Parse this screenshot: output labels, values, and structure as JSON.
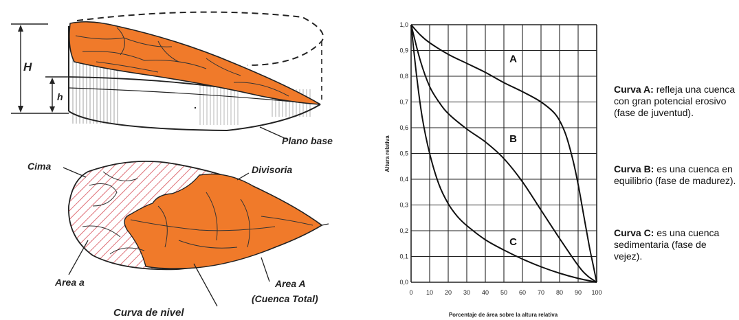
{
  "schematic": {
    "label_H": "H",
    "label_h": "h",
    "plano_base": "Plano base",
    "cima": "Cima",
    "divisoria": "Divisoria",
    "area_a": "Area  a",
    "area_A_line1": "Area  A",
    "area_A_line2": "(Cuenca Total)",
    "curva_de_nivel": "Curva de nivel",
    "colors": {
      "basin_fill": "#f07a2a",
      "hatch": "#d0303a",
      "outline": "#222222"
    }
  },
  "chart_data": {
    "type": "line",
    "xlabel": "Porcentaje de área sobre la altura relativa",
    "ylabel": "Altura relativa",
    "xlim": [
      0,
      100
    ],
    "ylim": [
      0,
      1.0
    ],
    "x_ticks": [
      "0",
      "10",
      "20",
      "30",
      "40",
      "50",
      "60",
      "70",
      "80",
      "90",
      "100"
    ],
    "y_ticks": [
      "0,0",
      "0,1",
      "0,2",
      "0,3",
      "0,4",
      "0,5",
      "0,6",
      "0,7",
      "0,8",
      "0,9",
      "1,0"
    ],
    "grid": true,
    "series": [
      {
        "name": "A",
        "x": [
          0,
          5,
          10,
          20,
          30,
          40,
          50,
          60,
          70,
          78,
          83,
          87,
          90,
          93,
          96,
          98,
          100
        ],
        "y": [
          1.0,
          0.96,
          0.93,
          0.885,
          0.85,
          0.815,
          0.775,
          0.74,
          0.7,
          0.65,
          0.58,
          0.48,
          0.38,
          0.26,
          0.14,
          0.07,
          0.0
        ]
      },
      {
        "name": "B",
        "x": [
          0,
          5,
          10,
          15,
          20,
          30,
          40,
          50,
          60,
          70,
          80,
          90,
          95,
          100
        ],
        "y": [
          1.0,
          0.86,
          0.76,
          0.7,
          0.655,
          0.595,
          0.545,
          0.48,
          0.39,
          0.28,
          0.17,
          0.065,
          0.025,
          0.0
        ]
      },
      {
        "name": "C",
        "x": [
          0,
          3,
          6,
          10,
          15,
          20,
          25,
          30,
          40,
          50,
          60,
          70,
          80,
          90,
          100
        ],
        "y": [
          1.0,
          0.8,
          0.64,
          0.5,
          0.38,
          0.305,
          0.255,
          0.22,
          0.165,
          0.125,
          0.09,
          0.06,
          0.035,
          0.015,
          0.0
        ]
      }
    ],
    "curve_labels": [
      {
        "text": "A",
        "x": 55,
        "y": 0.86
      },
      {
        "text": "B",
        "x": 55,
        "y": 0.55
      },
      {
        "text": "C",
        "x": 55,
        "y": 0.15
      }
    ]
  },
  "descriptions": [
    {
      "title": "Curva A:",
      "text": " refleja una cuenca con gran potencial erosivo (fase de juventud)."
    },
    {
      "title": "Curva B:",
      "text": " es una cuenca en equilibrio (fase de madurez)."
    },
    {
      "title": "Curva C:",
      "text": " es una cuenca sedimentaria (fase de vejez)."
    }
  ]
}
